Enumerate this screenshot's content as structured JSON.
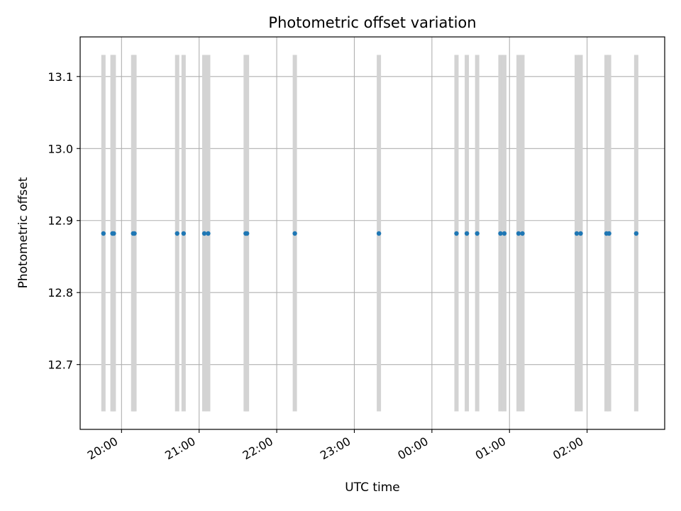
{
  "chart_data": {
    "type": "scatter",
    "title": "Photometric offset variation",
    "xlabel": "UTC time",
    "ylabel": "Photometric offset",
    "x_axis": "time (UTC), spanning 2 consecutive nights",
    "xlim": [
      "19:28",
      "03:00"
    ],
    "ylim": [
      12.61,
      13.155
    ],
    "grid": true,
    "x_ticks": [
      {
        "time": "20:00",
        "label": "20:00"
      },
      {
        "time": "21:00",
        "label": "21:00"
      },
      {
        "time": "22:00",
        "label": "22:00"
      },
      {
        "time": "23:00",
        "label": "23:00"
      },
      {
        "time": "00:00",
        "label": "00:00"
      },
      {
        "time": "01:00",
        "label": "01:00"
      },
      {
        "time": "02:00",
        "label": "02:00"
      }
    ],
    "y_ticks": [
      {
        "value": 12.7,
        "label": "12.7"
      },
      {
        "value": 12.8,
        "label": "12.8"
      },
      {
        "value": 12.9,
        "label": "12.9"
      },
      {
        "value": 13.0,
        "label": "13.0"
      },
      {
        "value": 13.1,
        "label": "13.1"
      }
    ],
    "colors": {
      "points": "#1f77b4",
      "error_bars": "#d3d3d3",
      "grid": "#b0b0b0"
    },
    "series": [
      {
        "error_bar_range": [
          12.635,
          13.13
        ],
        "x": [
          "19:46",
          "19:53",
          "19:54",
          "20:09",
          "20:10",
          "20:43",
          "20:48",
          "21:04",
          "21:07",
          "21:36",
          "21:37",
          "22:14",
          "23:19",
          "00:19",
          "00:27",
          "00:35",
          "00:53",
          "00:56",
          "01:07",
          "01:10",
          "01:52",
          "01:55",
          "02:15",
          "02:17",
          "02:38"
        ],
        "y": [
          12.882,
          12.882,
          12.882,
          12.882,
          12.882,
          12.882,
          12.882,
          12.882,
          12.882,
          12.882,
          12.882,
          12.882,
          12.882,
          12.882,
          12.882,
          12.882,
          12.882,
          12.882,
          12.882,
          12.882,
          12.882,
          12.882,
          12.882,
          12.882,
          12.882
        ]
      }
    ]
  }
}
